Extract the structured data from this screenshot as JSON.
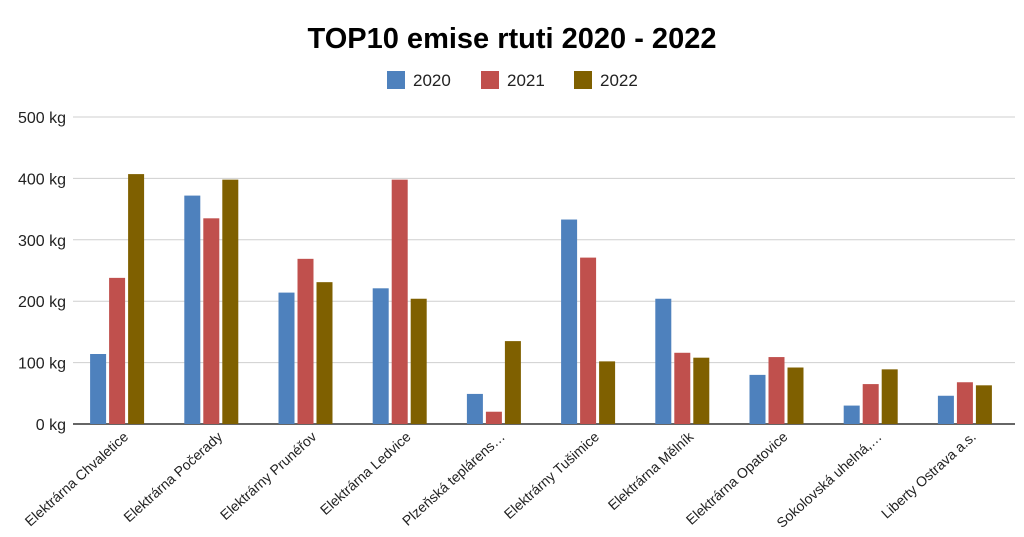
{
  "chart_data": {
    "type": "bar",
    "title": "TOP10 emise rtuti 2020 - 2022",
    "xlabel": "",
    "ylabel": "",
    "ylim": [
      0,
      500
    ],
    "yticks": [
      0,
      100,
      200,
      300,
      400,
      500
    ],
    "ytick_labels": [
      "0 kg",
      "100 kg",
      "200 kg",
      "300 kg",
      "400 kg",
      "500 kg"
    ],
    "grid": true,
    "legend_position": "top",
    "categories": [
      "Elektrárna Chvaletice",
      "Elektrárna Počerady",
      "Elektrárny Prunéřov",
      "Elektrárna Ledvice",
      "Plzeňská teplárens…",
      "Elektrárny Tušimice",
      "Elektrárna Mělník",
      "Elektrárna Opatovice",
      "Sokolovská uhelná,…",
      "Liberty Ostrava a.s."
    ],
    "series": [
      {
        "name": "2020",
        "color": "#4e81bd",
        "values": [
          114,
          372,
          214,
          221,
          49,
          333,
          204,
          80,
          30,
          46
        ]
      },
      {
        "name": "2021",
        "color": "#c0504d",
        "values": [
          238,
          335,
          269,
          398,
          20,
          271,
          116,
          109,
          65,
          68
        ]
      },
      {
        "name": "2022",
        "color": "#7f6000",
        "values": [
          407,
          398,
          231,
          204,
          135,
          102,
          108,
          92,
          89,
          63
        ]
      }
    ]
  }
}
